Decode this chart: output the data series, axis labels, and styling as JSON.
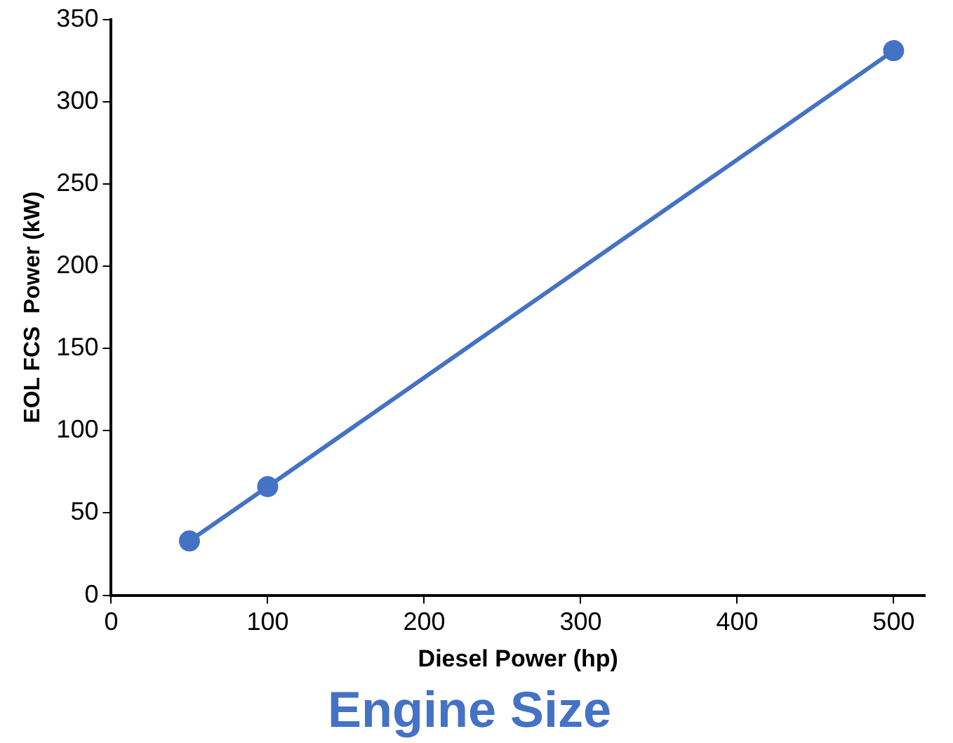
{
  "chart_data": {
    "type": "line",
    "title": "Engine Size",
    "xlabel": "Diesel Power (hp)",
    "ylabel": "EOL FCS  Power (kW)",
    "x": [
      50,
      100,
      500
    ],
    "series": [
      {
        "color": "#4472c4",
        "values": [
          33,
          66,
          331
        ]
      }
    ],
    "xlim": [
      0,
      520
    ],
    "xticks": [
      0,
      100,
      200,
      300,
      400,
      500
    ],
    "ylim": [
      0,
      350
    ],
    "yticks": [
      0,
      50,
      100,
      150,
      200,
      250,
      300,
      350
    ],
    "grid": false,
    "legend": false,
    "marker": "circle",
    "line_style": "solid"
  }
}
